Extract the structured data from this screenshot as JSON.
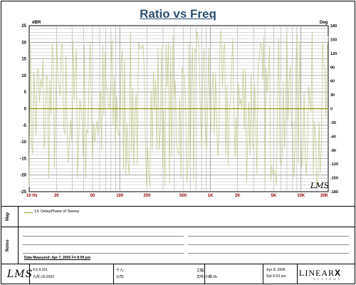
{
  "chart_data": {
    "type": "line",
    "title": "Ratio vs Freq",
    "ylabel_left": "dBR",
    "ylabel_right": "Deg",
    "xscale": "log",
    "xlim": [
      10,
      20000
    ],
    "ylim_left": [
      -25,
      25
    ],
    "ylim_right": [
      -180,
      180
    ],
    "x_ticks": [
      {
        "v": 10,
        "label": "10  Hz"
      },
      {
        "v": 20,
        "label": "20"
      },
      {
        "v": 50,
        "label": "50"
      },
      {
        "v": 100,
        "label": "100"
      },
      {
        "v": 200,
        "label": "200"
      },
      {
        "v": 500,
        "label": "500"
      },
      {
        "v": 1000,
        "label": "1K"
      },
      {
        "v": 2000,
        "label": "2K"
      },
      {
        "v": 5000,
        "label": "5K"
      },
      {
        "v": 10000,
        "label": "10K"
      },
      {
        "v": 20000,
        "label": "20K"
      }
    ],
    "y_left_ticks": [
      "25",
      "20",
      "15",
      "10",
      "5",
      "0",
      "-5",
      "-10",
      "-15",
      "-20",
      "-25"
    ],
    "y_right_ticks": [
      "180",
      "150",
      "120",
      "90",
      "60",
      "30",
      "0",
      "-30",
      "-60",
      "-90",
      "-120",
      "-150",
      "-180"
    ],
    "series": [
      {
        "name": "",
        "axis": "left",
        "color": "#9aa02a",
        "constant": 0
      },
      {
        "name": "",
        "axis": "right",
        "color": "#c8cc98",
        "pattern": "wrapped phase oscillating between -180 and 180 Deg"
      }
    ]
  },
  "legend": {
    "entry": "13: DelayPhase of Sweep"
  },
  "side_labels": {
    "map": "Map",
    "notes": "Notes"
  },
  "notes": {
    "data_measured": "Data Measured: Apr 7, 2006  Fri  8:09 pm"
  },
  "footer": {
    "logo": "LMS",
    "version": "4.5.0.331",
    "build_date": "六月-15-2003",
    "person_label": "个人:",
    "company_label": "公司:",
    "project_label": "工程:",
    "file_label": "文件:小眼.lib",
    "date": "Apr 8, 2006",
    "time": "Sat  9:53 am",
    "linearx": "LINEAR",
    "linearx_x": "X",
    "linearx_sub": "SYSTEMS"
  },
  "watermark": "LMS",
  "colors": {
    "title": "#2e4f6e",
    "tick_x": "#8b0000",
    "grid": "#9a9a9a",
    "phase": "#c8cc98",
    "magnitude": "#9aa02a"
  }
}
